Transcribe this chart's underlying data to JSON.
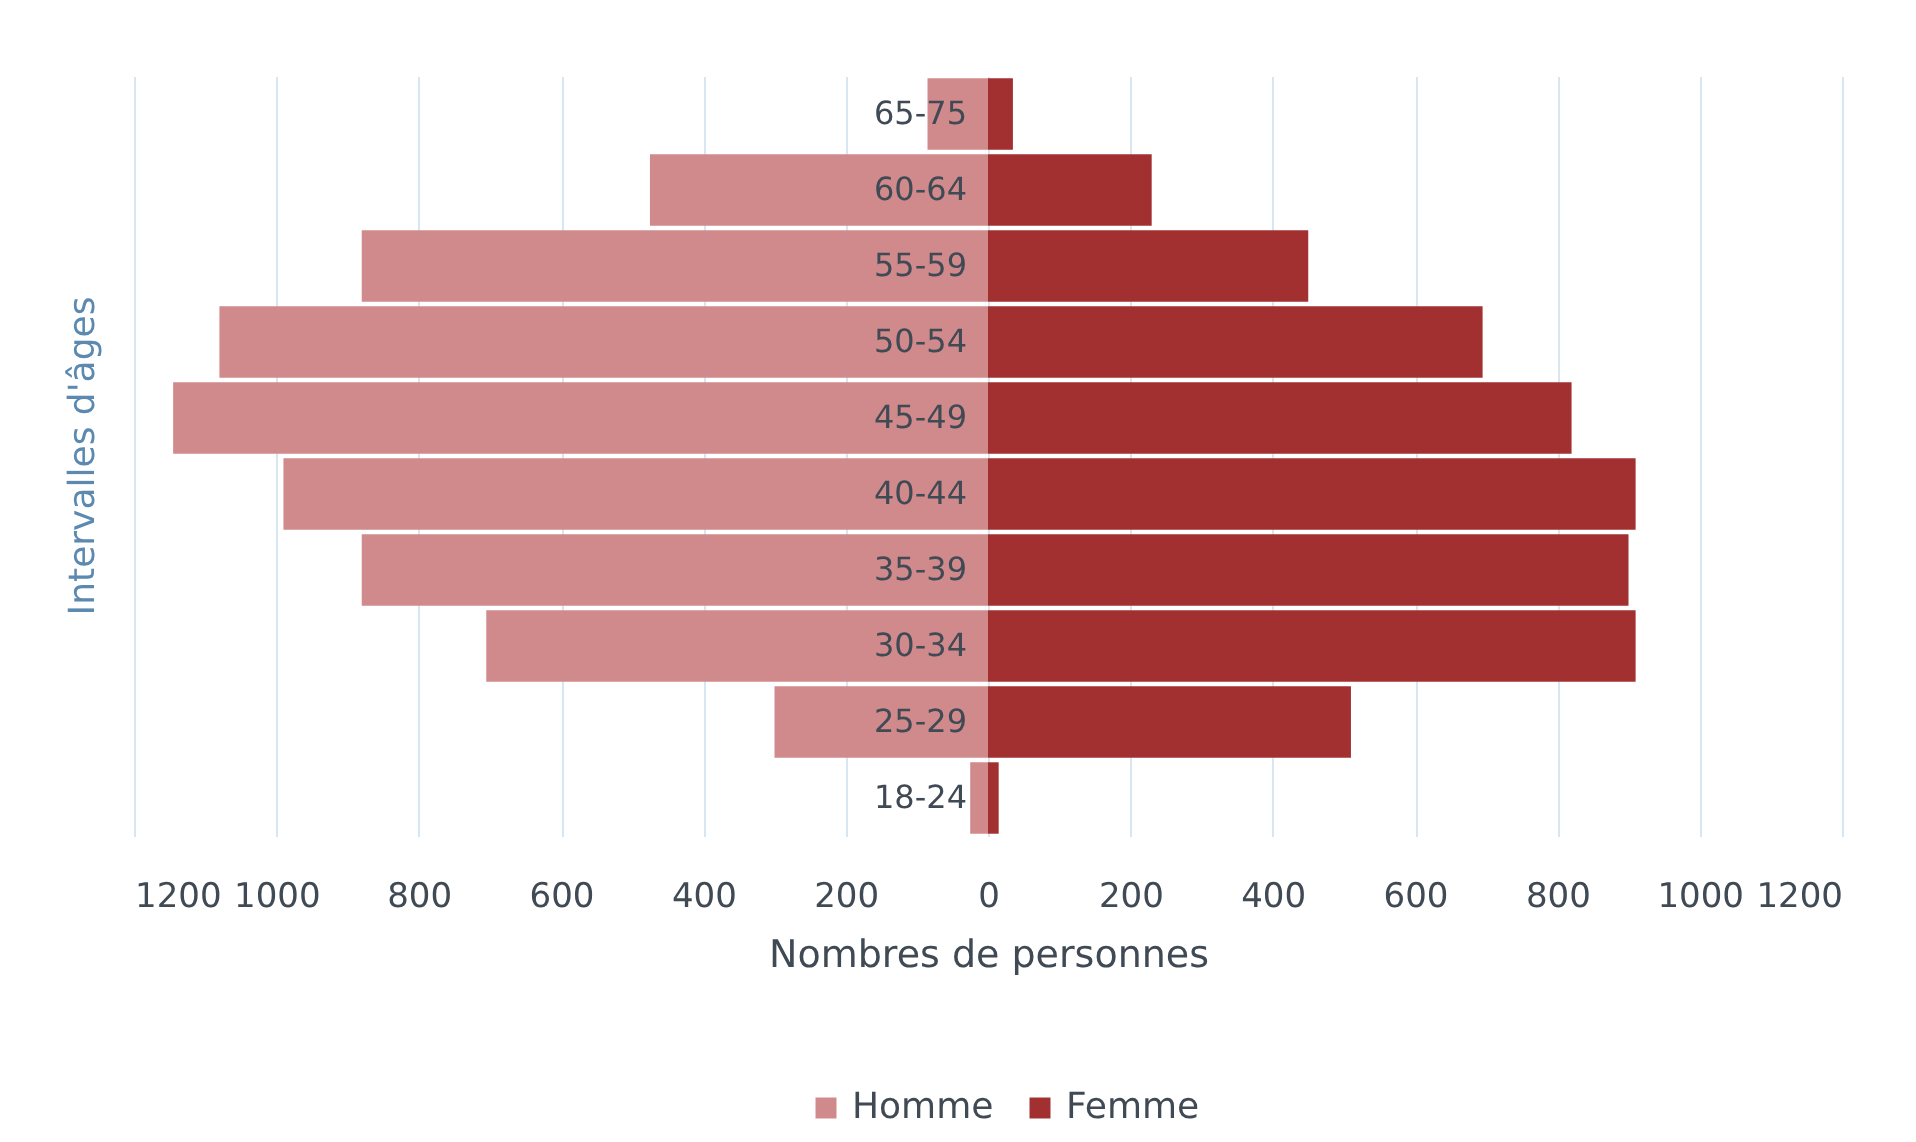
{
  "chart_data": {
    "type": "bar",
    "orientation": "horizontal",
    "xlabel": "Nombres de personnes",
    "ylabel": "Intervalles d'âges",
    "categories": [
      "65-75",
      "60-64",
      "55-59",
      "50-54",
      "45-49",
      "40-44",
      "35-39",
      "30-34",
      "25-29",
      "18-24"
    ],
    "series": [
      {
        "name": "Homme",
        "color": "#d08a8c",
        "values": [
          -85,
          -475,
          -880,
          -1080,
          -1145,
          -990,
          -880,
          -705,
          -300,
          -25
        ]
      },
      {
        "name": "Femme",
        "color": "#a33030",
        "values": [
          35,
          230,
          450,
          695,
          820,
          910,
          900,
          910,
          510,
          15
        ]
      }
    ],
    "xlim": [
      -1200,
      1200
    ],
    "xticks": [
      {
        "value": -1200,
        "label": "1200"
      },
      {
        "value": -1000,
        "label": "1000"
      },
      {
        "value": -800,
        "label": "800"
      },
      {
        "value": -600,
        "label": "600"
      },
      {
        "value": -400,
        "label": "400"
      },
      {
        "value": -200,
        "label": "200"
      },
      0,
      200,
      400,
      600,
      800,
      1000,
      1200
    ],
    "stacked": true,
    "grid": "x",
    "legend": "bottom"
  }
}
